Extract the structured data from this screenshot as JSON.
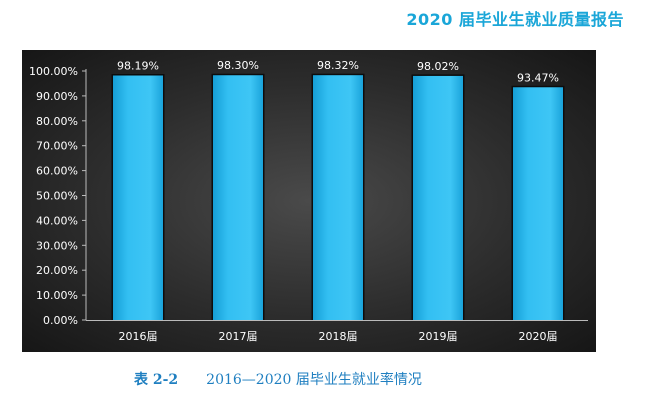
{
  "page_header": "2020 届毕业生就业质量报告",
  "caption": {
    "label": "表 2-2",
    "text": "2016—2020 届毕业生就业率情况"
  },
  "colors": {
    "bar": "#33bff2",
    "bar_dark": "#169fd6",
    "accent": "#1aa6d8"
  },
  "chart_data": {
    "type": "bar",
    "title": "",
    "xlabel": "",
    "ylabel": "",
    "categories": [
      "2016届",
      "2017届",
      "2018届",
      "2019届",
      "2020届"
    ],
    "values": [
      98.19,
      98.3,
      98.32,
      98.02,
      93.47
    ],
    "value_labels": [
      "98.19%",
      "98.30%",
      "98.32%",
      "98.02%",
      "93.47%"
    ],
    "ylim": [
      0,
      100
    ],
    "yticks": [
      "0.00%",
      "10.00%",
      "20.00%",
      "30.00%",
      "40.00%",
      "50.00%",
      "60.00%",
      "70.00%",
      "80.00%",
      "90.00%",
      "100.00%"
    ],
    "grid": false,
    "legend": "none"
  }
}
